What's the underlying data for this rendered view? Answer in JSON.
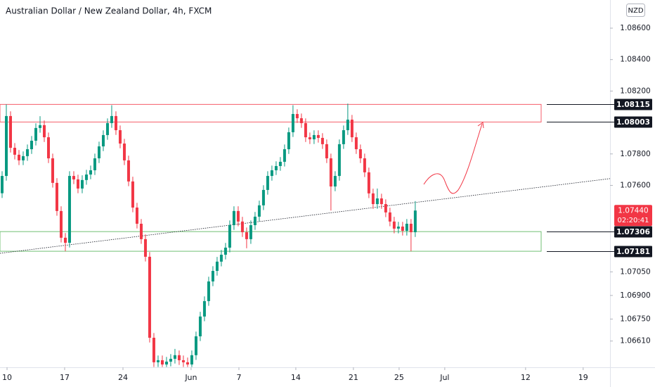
{
  "header": {
    "title": "Australian Dollar / New Zealand Dollar, 4h, FXCM",
    "currency": "NZD"
  },
  "chart_data": {
    "type": "candlestick",
    "up_color": "#089981",
    "down_color": "#f23645",
    "open": [
      1.0755,
      1.0766,
      1.08041,
      1.07839,
      1.07795,
      1.07759,
      1.07786,
      1.0783,
      1.07884,
      1.07965,
      1.07983,
      1.07906,
      1.07772,
      1.07616,
      1.07437,
      1.07267,
      1.07235,
      1.0766,
      1.07638,
      1.0758,
      1.07634,
      1.07669,
      1.07696,
      1.07772,
      1.07848,
      1.0792,
      1.07996,
      1.08041,
      1.07951,
      1.07866,
      1.07759,
      1.07625,
      1.07459,
      1.07356,
      1.07258,
      1.07146,
      1.06631,
      1.06475,
      1.06488,
      1.06461,
      1.06479,
      1.06497,
      1.0652,
      1.06488,
      1.06475,
      1.06461,
      1.0652,
      1.0664,
      1.06766,
      1.06864,
      1.06989,
      1.07056,
      1.07115,
      1.07159,
      1.07204,
      1.07347,
      1.07437,
      1.0737,
      1.07302,
      1.07258,
      1.07347,
      1.07401,
      1.07473,
      1.07571,
      1.0766,
      1.07696,
      1.07723,
      1.0775,
      1.0783,
      1.07938,
      1.08054,
      1.08027,
      1.07996,
      1.07906,
      1.07893,
      1.0792,
      1.07902,
      1.07862,
      1.07772,
      1.07593,
      1.0766,
      1.07862,
      1.07951,
      1.08018,
      1.07906,
      1.0783,
      1.07772,
      1.07683,
      1.07549,
      1.07481,
      1.07517,
      1.07481,
      1.07428,
      1.0737,
      1.07325,
      1.07338,
      1.07311,
      1.07356,
      1.07302
    ],
    "high": [
      1.0769,
      1.08115,
      1.08071,
      1.07869,
      1.07825,
      1.07816,
      1.0786,
      1.07914,
      1.07995,
      1.0804,
      1.08013,
      1.07936,
      1.07802,
      1.07646,
      1.07467,
      1.07297,
      1.0769,
      1.0769,
      1.07668,
      1.07664,
      1.07699,
      1.07726,
      1.07802,
      1.07878,
      1.0795,
      1.08026,
      1.0811,
      1.08071,
      1.07981,
      1.07896,
      1.07789,
      1.07655,
      1.07489,
      1.07386,
      1.07288,
      1.07176,
      1.06661,
      1.06518,
      1.06518,
      1.06509,
      1.06527,
      1.0656,
      1.0655,
      1.06518,
      1.06505,
      1.0655,
      1.0667,
      1.06796,
      1.06894,
      1.07019,
      1.07086,
      1.07145,
      1.07189,
      1.07234,
      1.07377,
      1.07467,
      1.07467,
      1.074,
      1.07332,
      1.07377,
      1.07431,
      1.07503,
      1.07601,
      1.0769,
      1.07726,
      1.07753,
      1.0778,
      1.0786,
      1.07968,
      1.0811,
      1.08084,
      1.08057,
      1.08026,
      1.07936,
      1.0795,
      1.0795,
      1.07932,
      1.07892,
      1.07802,
      1.0769,
      1.07892,
      1.07981,
      1.0812,
      1.08048,
      1.07936,
      1.0786,
      1.07802,
      1.07713,
      1.07579,
      1.0758,
      1.07547,
      1.07511,
      1.07458,
      1.074,
      1.07368,
      1.07368,
      1.07386,
      1.07386,
      1.075
    ],
    "low": [
      1.0752,
      1.0763,
      1.07809,
      1.07765,
      1.07729,
      1.07729,
      1.07756,
      1.078,
      1.07854,
      1.07935,
      1.07876,
      1.07742,
      1.07586,
      1.07407,
      1.07237,
      1.07181,
      1.07205,
      1.07608,
      1.0755,
      1.0755,
      1.07604,
      1.07639,
      1.07666,
      1.07742,
      1.07818,
      1.0789,
      1.07966,
      1.07921,
      1.07836,
      1.07729,
      1.07595,
      1.07429,
      1.07326,
      1.07228,
      1.07116,
      1.06601,
      1.06445,
      1.06445,
      1.06445,
      1.06445,
      1.06449,
      1.06467,
      1.06458,
      1.06445,
      1.06445,
      1.06445,
      1.0649,
      1.0661,
      1.06736,
      1.06834,
      1.06959,
      1.07026,
      1.07085,
      1.07129,
      1.07174,
      1.07317,
      1.0734,
      1.07272,
      1.072,
      1.07228,
      1.07317,
      1.07371,
      1.07443,
      1.07541,
      1.0763,
      1.07666,
      1.07693,
      1.0772,
      1.078,
      1.07908,
      1.07997,
      1.07966,
      1.07876,
      1.07863,
      1.07863,
      1.07872,
      1.07832,
      1.07742,
      1.0744,
      1.07563,
      1.0763,
      1.07832,
      1.07921,
      1.07876,
      1.078,
      1.07742,
      1.07653,
      1.07519,
      1.07451,
      1.07451,
      1.07451,
      1.07398,
      1.0734,
      1.07295,
      1.07295,
      1.07281,
      1.07281,
      1.07181,
      1.07272
    ],
    "close": [
      1.0766,
      1.08041,
      1.07839,
      1.07795,
      1.07759,
      1.07786,
      1.0783,
      1.07884,
      1.07965,
      1.07983,
      1.07906,
      1.07772,
      1.07616,
      1.07437,
      1.07267,
      1.07235,
      1.0766,
      1.07638,
      1.0758,
      1.07634,
      1.07669,
      1.07696,
      1.07772,
      1.07848,
      1.0792,
      1.07996,
      1.08041,
      1.07951,
      1.07866,
      1.07759,
      1.07625,
      1.07459,
      1.07356,
      1.07258,
      1.07146,
      1.06631,
      1.06475,
      1.06488,
      1.06461,
      1.06479,
      1.06497,
      1.0652,
      1.06488,
      1.06475,
      1.06461,
      1.0652,
      1.0664,
      1.06766,
      1.06864,
      1.06989,
      1.07056,
      1.07115,
      1.07159,
      1.07204,
      1.07347,
      1.07437,
      1.0737,
      1.07302,
      1.07258,
      1.07347,
      1.07401,
      1.07473,
      1.07571,
      1.0766,
      1.07696,
      1.07723,
      1.0775,
      1.0783,
      1.07938,
      1.08054,
      1.08027,
      1.07996,
      1.07906,
      1.07893,
      1.0792,
      1.07902,
      1.07862,
      1.07772,
      1.07593,
      1.0766,
      1.07862,
      1.07951,
      1.08018,
      1.07906,
      1.0783,
      1.07772,
      1.07683,
      1.07549,
      1.07481,
      1.07517,
      1.07481,
      1.07428,
      1.0737,
      1.07325,
      1.07338,
      1.07311,
      1.07356,
      1.07302,
      1.0744
    ],
    "xlim": [
      -0.5,
      144.2
    ],
    "xticks": [
      {
        "value": 1.17,
        "label": "10"
      },
      {
        "value": 14.83,
        "label": "17"
      },
      {
        "value": 28.67,
        "label": "24"
      },
      {
        "value": 44.83,
        "label": "Jun"
      },
      {
        "value": 56.17,
        "label": "7"
      },
      {
        "value": 69.67,
        "label": "14"
      },
      {
        "value": 83.33,
        "label": "21"
      },
      {
        "value": 94.17,
        "label": "25"
      },
      {
        "value": 105,
        "label": "Jul"
      },
      {
        "value": 124.17,
        "label": "12"
      },
      {
        "value": 137.83,
        "label": "19"
      }
    ],
    "ylim": [
      1.06443,
      1.08779
    ],
    "yticks": [
      {
        "value": 1.086,
        "label": "1.08600"
      },
      {
        "value": 1.084,
        "label": "1.08400"
      },
      {
        "value": 1.082,
        "label": "1.08200"
      },
      {
        "value": 1.078,
        "label": "1.07800"
      },
      {
        "value": 1.076,
        "label": "1.07600"
      },
      {
        "value": 1.0705,
        "label": "1.07050"
      },
      {
        "value": 1.069,
        "label": "1.06900"
      },
      {
        "value": 1.0675,
        "label": "1.06750"
      },
      {
        "value": 1.0661,
        "label": "1.06610"
      }
    ],
    "zones": [
      {
        "color": "#f23645",
        "levels": [
          1.08115,
          1.08003
        ]
      },
      {
        "color": "#4caf50",
        "levels": [
          1.07306,
          1.07181
        ]
      }
    ],
    "trendline": [
      [
        -0.5,
        1.07168
      ],
      [
        144.2,
        1.07643
      ]
    ],
    "last_price": {
      "value": 1.0744,
      "label": "1.07440",
      "countdown": "02:20:41",
      "color": "#f23645"
    }
  }
}
